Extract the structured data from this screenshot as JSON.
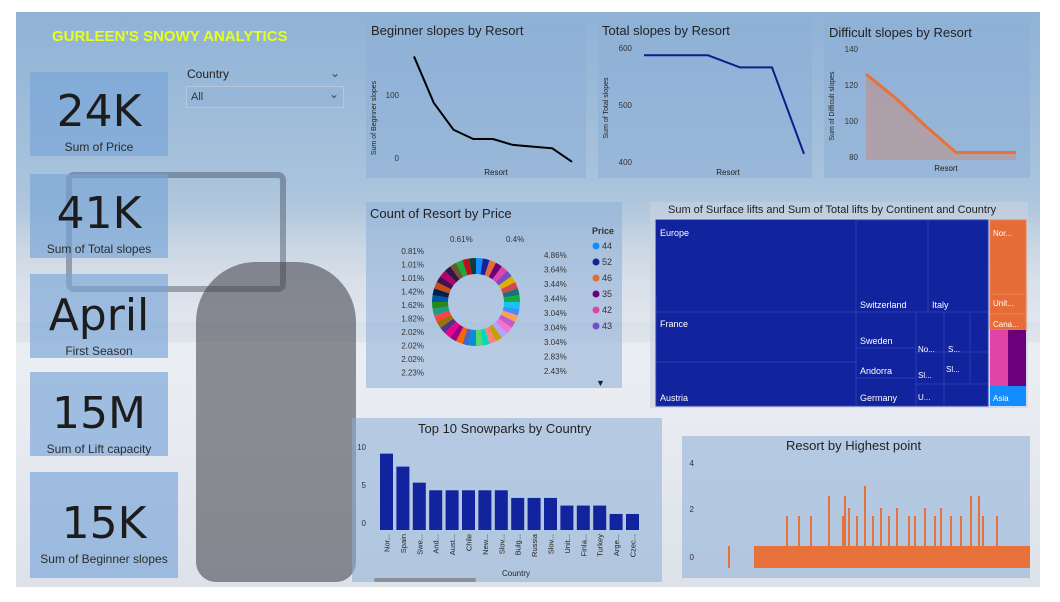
{
  "report": {
    "title": "GURLEEN'S SNOWY ANALYTICS"
  },
  "slicer": {
    "label": "Country",
    "value": "All"
  },
  "kpis": [
    {
      "value": "24K",
      "label": "Sum of Price"
    },
    {
      "value": "41K",
      "label": "Sum of Total slopes"
    },
    {
      "value": "April",
      "label": "First Season"
    },
    {
      "value": "15M",
      "label": "Sum of Lift capacity"
    },
    {
      "value": "15K",
      "label": "Sum of Beginner slopes"
    }
  ],
  "charts": {
    "beginner": {
      "title": "Beginner slopes by Resort",
      "ylabel": "Sum of Beginner slopes",
      "xlabel": "Resort",
      "yticks": [
        "100",
        "0"
      ]
    },
    "total": {
      "title": "Total slopes by Resort",
      "ylabel": "Sum of Total slopes",
      "xlabel": "Resort",
      "yticks": [
        "600",
        "500",
        "400"
      ]
    },
    "difficult": {
      "title": "Difficult slopes by Resort",
      "ylabel": "Sum of Difficult slopes",
      "xlabel": "Resort",
      "yticks": [
        "140",
        "120",
        "100",
        "80"
      ]
    },
    "donut": {
      "title": "Count of Resort by Price",
      "legend_title": "Price",
      "legend": [
        {
          "label": "44",
          "color": "#118dff"
        },
        {
          "label": "52",
          "color": "#12239e"
        },
        {
          "label": "46",
          "color": "#e66c37"
        },
        {
          "label": "35",
          "color": "#6b007b"
        },
        {
          "label": "42",
          "color": "#e044a7"
        },
        {
          "label": "43",
          "color": "#744ec2"
        }
      ],
      "labels_left": [
        "0.81%",
        "1.01%",
        "1.01%",
        "1.42%",
        "1.62%",
        "1.82%",
        "2.02%",
        "2.02%",
        "2.02%",
        "2.23%"
      ],
      "labels_top": [
        "0.61%",
        "0.4%"
      ],
      "labels_right": [
        "4.86%",
        "3.64%",
        "3.44%",
        "3.44%",
        "3.04%",
        "3.04%",
        "3.04%",
        "2.83%",
        "2.43%"
      ]
    },
    "treemap": {
      "title": "Sum of Surface lifts and Sum of Total lifts by Continent and Country",
      "labels": [
        "Europe",
        "France",
        "Austria",
        "Switzerland",
        "Italy",
        "Sweden",
        "Andorra",
        "Germany",
        "No...",
        "S...",
        "Sl...",
        "Sl...",
        "U...",
        "Nor...",
        "Unit...",
        "Cana...",
        "Asia"
      ]
    },
    "snowparks": {
      "title": "Top 10 Snowparks by Country",
      "xlabel": "Country",
      "yticks": [
        "10",
        "5",
        "0"
      ]
    },
    "highest": {
      "title": "Resort by Highest point",
      "yticks": [
        "4",
        "2",
        "0"
      ]
    }
  },
  "chart_data": [
    {
      "type": "line",
      "title": "Beginner slopes by Resort",
      "xlabel": "Resort",
      "ylabel": "Sum of Beginner slopes",
      "x": [
        1,
        2,
        3,
        4,
        5,
        6,
        7,
        8,
        9
      ],
      "values": [
        130,
        75,
        43,
        32,
        32,
        25,
        23,
        21,
        5
      ],
      "ylim": [
        0,
        140
      ],
      "color": "#000000"
    },
    {
      "type": "line",
      "title": "Total slopes by Resort",
      "xlabel": "Resort",
      "ylabel": "Sum of Total slopes",
      "x": [
        1,
        2,
        3,
        4,
        5,
        6
      ],
      "values": [
        600,
        600,
        600,
        577,
        577,
        413
      ],
      "ylim": [
        390,
        610
      ],
      "color": "#0b1f8a"
    },
    {
      "type": "area",
      "title": "Difficult slopes by Resort",
      "xlabel": "Resort",
      "ylabel": "Sum of Difficult slopes",
      "x": [
        1,
        2,
        3,
        4,
        5,
        6
      ],
      "values": [
        126,
        113,
        98,
        84,
        84,
        84
      ],
      "ylim": [
        80,
        140
      ],
      "color": "#e8703a"
    },
    {
      "type": "bar",
      "title": "Top 10 Snowparks by Country",
      "xlabel": "Country",
      "categories": [
        "Nor...",
        "Spain",
        "Swe...",
        "And...",
        "Aust...",
        "Chile",
        "New...",
        "Slov...",
        "Bulg...",
        "Russia",
        "Slov...",
        "Unit...",
        "Finla...",
        "Turkey",
        "Arge...",
        "Czec..."
      ],
      "values": [
        10,
        8.3,
        6.2,
        5.2,
        5.2,
        5.2,
        5.2,
        5.2,
        4.2,
        4.2,
        4.2,
        3.2,
        3.2,
        3.2,
        2.1,
        2.1
      ],
      "ylim": [
        0,
        11
      ],
      "color": "#12239e"
    }
  ]
}
